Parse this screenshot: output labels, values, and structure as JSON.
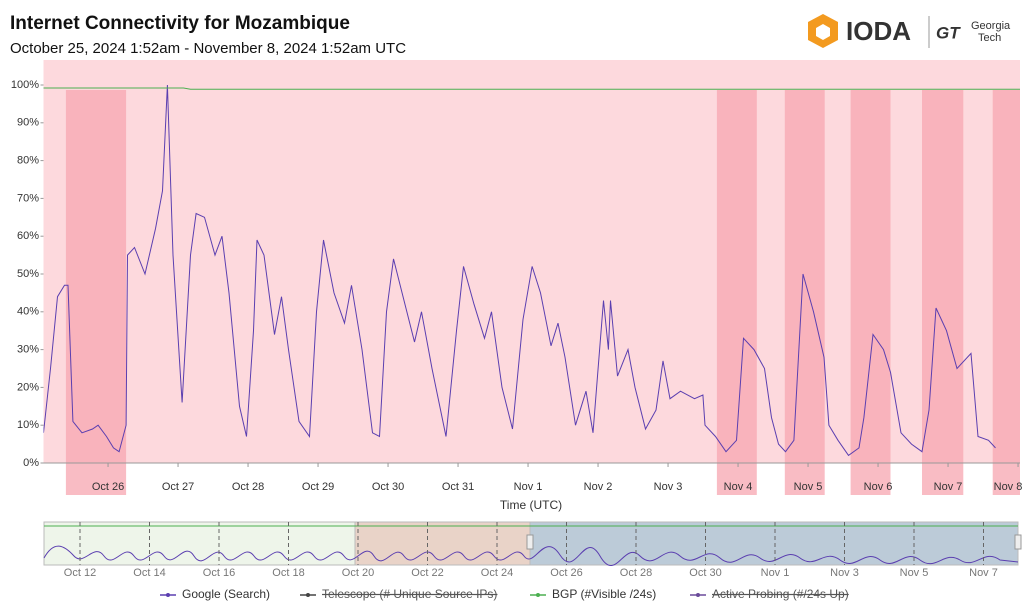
{
  "header": {
    "title": "Internet Connectivity for  Mozambique",
    "subtitle": "October 25, 2024 1:52am - November 8, 2024 1:52am UTC",
    "logo": "IODA",
    "partner": [
      "Georgia",
      "Tech"
    ]
  },
  "chart_data": {
    "type": "line",
    "x_label": "Time (UTC)",
    "xlim": [
      0,
      14
    ],
    "xticks": [
      {
        "value": 0.922,
        "label": "Oct 26"
      },
      {
        "value": 1.922,
        "label": "Oct 27"
      },
      {
        "value": 2.922,
        "label": "Oct 28"
      },
      {
        "value": 3.922,
        "label": "Oct 29"
      },
      {
        "value": 4.922,
        "label": "Oct 30"
      },
      {
        "value": 5.922,
        "label": "Oct 31"
      },
      {
        "value": 6.922,
        "label": "Nov 1"
      },
      {
        "value": 7.922,
        "label": "Nov 2"
      },
      {
        "value": 8.922,
        "label": "Nov 3"
      },
      {
        "value": 9.922,
        "label": "Nov 4"
      },
      {
        "value": 10.922,
        "label": "Nov 5"
      },
      {
        "value": 11.922,
        "label": "Nov 6"
      },
      {
        "value": 12.922,
        "label": "Nov 7"
      },
      {
        "value": 13.922,
        "label": "Nov 8"
      }
    ],
    "ylim": [
      0,
      100
    ],
    "yticks": [
      {
        "value": 0,
        "label": "0%"
      },
      {
        "value": 10,
        "label": "10%"
      },
      {
        "value": 20,
        "label": "20%"
      },
      {
        "value": 30,
        "label": "30%"
      },
      {
        "value": 40,
        "label": "40%"
      },
      {
        "value": 50,
        "label": "50%"
      },
      {
        "value": 60,
        "label": "60%"
      },
      {
        "value": 70,
        "label": "70%"
      },
      {
        "value": 80,
        "label": "80%"
      },
      {
        "value": 90,
        "label": "90%"
      },
      {
        "value": 100,
        "label": "100%"
      }
    ],
    "grid": false,
    "outages": [
      {
        "start": 0.32,
        "end": 1.18
      },
      {
        "start": 9.62,
        "end": 10.19
      },
      {
        "start": 10.59,
        "end": 11.16
      },
      {
        "start": 11.53,
        "end": 12.1
      },
      {
        "start": 12.55,
        "end": 13.14
      },
      {
        "start": 13.56,
        "end": 14
      }
    ],
    "series": [
      {
        "name": "Google (Search)",
        "color": "#5b3fb0",
        "hidden": false,
        "x": [
          0,
          0.1,
          0.2,
          0.3,
          0.35,
          0.42,
          0.55,
          0.7,
          0.78,
          0.9,
          1.0,
          1.08,
          1.18,
          1.2,
          1.3,
          1.45,
          1.6,
          1.7,
          1.77,
          1.85,
          1.98,
          2.1,
          2.18,
          2.3,
          2.45,
          2.55,
          2.65,
          2.8,
          2.9,
          3.0,
          3.05,
          3.15,
          3.3,
          3.4,
          3.5,
          3.65,
          3.8,
          3.9,
          4.0,
          4.15,
          4.3,
          4.4,
          4.55,
          4.7,
          4.8,
          4.9,
          5.0,
          5.15,
          5.3,
          5.4,
          5.55,
          5.75,
          5.9,
          6.0,
          6.15,
          6.3,
          6.4,
          6.55,
          6.7,
          6.85,
          6.98,
          7.1,
          7.25,
          7.35,
          7.45,
          7.6,
          7.75,
          7.85,
          8.0,
          8.07,
          8.1,
          8.2,
          8.35,
          8.45,
          8.6,
          8.75,
          8.85,
          8.95,
          9.1,
          9.3,
          9.42,
          9.45,
          9.6,
          9.75,
          9.9,
          10.0,
          10.15,
          10.3,
          10.4,
          10.5,
          10.6,
          10.72,
          10.85,
          11.0,
          11.15,
          11.22,
          11.35,
          11.5,
          11.65,
          11.72,
          11.85,
          12.0,
          12.1,
          12.25,
          12.4,
          12.55,
          12.65,
          12.75,
          12.9,
          13.05,
          13.25,
          13.35,
          13.5,
          13.6
        ],
        "values": [
          8,
          25,
          44,
          47,
          47,
          11,
          8,
          9,
          10,
          7,
          4,
          3,
          10,
          55,
          57,
          50,
          62,
          72,
          100,
          55,
          16,
          55,
          66,
          65,
          55,
          60,
          45,
          15,
          7,
          35,
          59,
          55,
          34,
          44,
          30,
          11,
          7,
          40,
          59,
          45,
          37,
          47,
          30,
          8,
          7,
          40,
          54,
          43,
          32,
          40,
          25,
          7,
          35,
          52,
          42,
          33,
          40,
          20,
          9,
          38,
          52,
          45,
          31,
          37,
          28,
          10,
          19,
          8,
          43,
          30,
          43,
          23,
          30,
          20,
          9,
          14,
          27,
          17,
          19,
          17,
          18,
          10,
          7,
          3,
          6,
          33,
          30,
          25,
          12,
          5,
          3,
          6,
          50,
          40,
          28,
          10,
          6,
          2,
          4,
          12,
          34,
          30,
          24,
          8,
          5,
          3,
          14,
          41,
          35,
          25,
          29,
          7,
          6,
          4
        ]
      },
      {
        "name": "Telescope (# Unique Source IPs)",
        "color": "#444444",
        "hidden": true,
        "x": [],
        "values": []
      },
      {
        "name": "BGP (#Visible /24s)",
        "color": "#4caf50",
        "hidden": false,
        "x": [
          0,
          2.0,
          2.1,
          14
        ],
        "values": [
          99.2,
          99.2,
          98.9,
          98.9
        ]
      },
      {
        "name": "Active Probing (#/24s Up)",
        "color": "#6a4b9a",
        "hidden": true,
        "x": [],
        "values": []
      }
    ]
  },
  "navigator": {
    "labels": [
      "Oct 12",
      "Oct 14",
      "Oct 16",
      "Oct 18",
      "Oct 20",
      "Oct 22",
      "Oct 24",
      "Oct 26",
      "Oct 28",
      "Oct 30",
      "Nov 1",
      "Nov 3",
      "Nov 5",
      "Nov 7"
    ]
  }
}
